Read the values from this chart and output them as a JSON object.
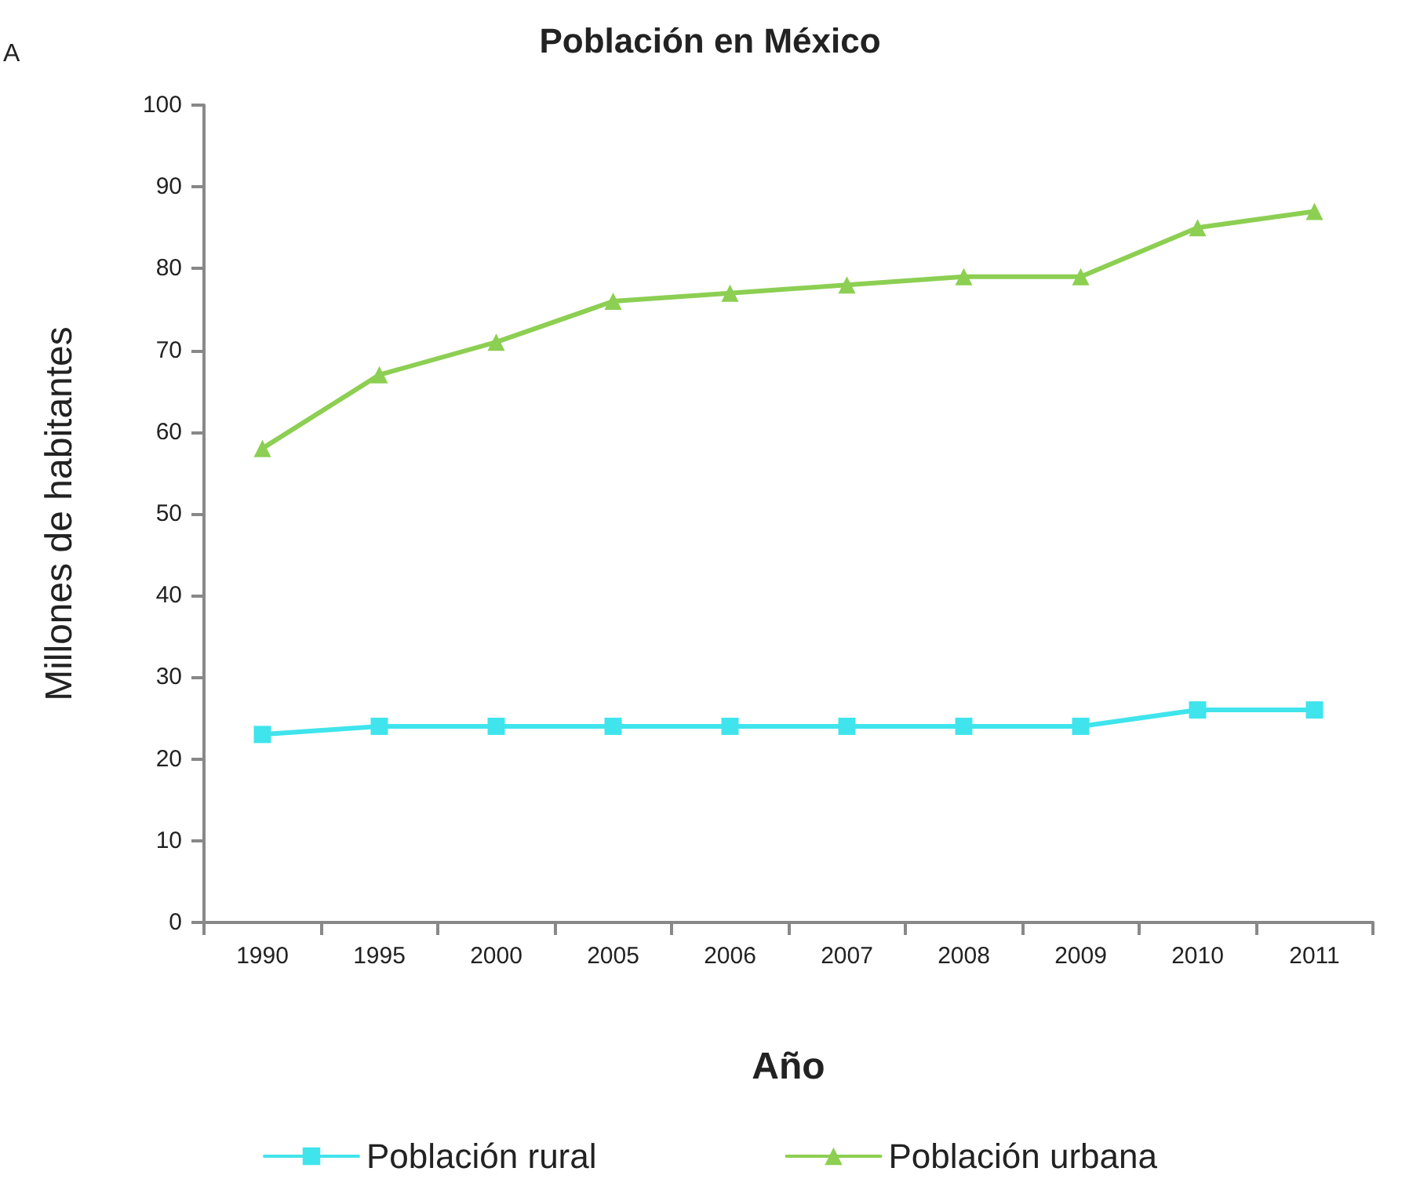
{
  "chart_data": {
    "type": "line",
    "title": "Población en México",
    "xlabel": "Año",
    "ylabel": "Millones de habitantes",
    "annotations": [
      "A"
    ],
    "categories": [
      "1990",
      "1995",
      "2000",
      "2005",
      "2006",
      "2007",
      "2008",
      "2009",
      "2010",
      "2011"
    ],
    "series": [
      {
        "name": "Población rural",
        "color": "#40e4ec",
        "marker": "square",
        "values": [
          23,
          24,
          24,
          24,
          24,
          24,
          24,
          24,
          26,
          26
        ]
      },
      {
        "name": "Población urbana",
        "color": "#8ccf52",
        "marker": "triangle",
        "values": [
          58,
          67,
          71,
          76,
          77,
          78,
          79,
          79,
          85,
          87
        ]
      }
    ],
    "ylim": [
      0,
      100
    ],
    "yticks": [
      0,
      10,
      20,
      30,
      40,
      50,
      60,
      70,
      80,
      90,
      100
    ],
    "grid": false,
    "legend": "bottom",
    "line_style": "solid"
  }
}
